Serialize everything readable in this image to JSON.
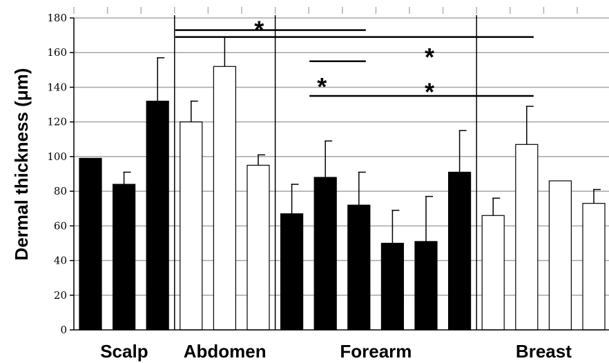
{
  "chart_data": {
    "type": "bar",
    "title": "",
    "ylabel": "Dermal thickness (μm)",
    "ylim": [
      0,
      180
    ],
    "yticks": [
      0,
      20,
      40,
      60,
      80,
      100,
      120,
      140,
      160,
      180
    ],
    "grid": true,
    "groups": [
      {
        "label": "Scalp",
        "bars": [
          {
            "value": 99,
            "error": 0,
            "fill": "black"
          },
          {
            "value": 84,
            "error": 7,
            "fill": "black"
          },
          {
            "value": 132,
            "error": 25,
            "fill": "black"
          }
        ]
      },
      {
        "label": "Abdomen",
        "bars": [
          {
            "value": 120,
            "error": 12,
            "fill": "white"
          },
          {
            "value": 152,
            "error": 17,
            "fill": "white"
          },
          {
            "value": 95,
            "error": 6,
            "fill": "white"
          }
        ]
      },
      {
        "label": "Forearm",
        "bars": [
          {
            "value": 67,
            "error": 17,
            "fill": "black"
          },
          {
            "value": 88,
            "error": 21,
            "fill": "black"
          },
          {
            "value": 72,
            "error": 19,
            "fill": "black"
          },
          {
            "value": 50,
            "error": 19,
            "fill": "black"
          },
          {
            "value": 51,
            "error": 26,
            "fill": "black"
          },
          {
            "value": 91,
            "error": 24,
            "fill": "black"
          }
        ]
      },
      {
        "label": "Breast",
        "bars": [
          {
            "value": 66,
            "error": 10,
            "fill": "white"
          },
          {
            "value": 107,
            "error": 22,
            "fill": "white"
          },
          {
            "value": 86,
            "error": 0,
            "fill": "white"
          },
          {
            "value": 73,
            "error": 8,
            "fill": "white"
          }
        ]
      }
    ],
    "significance": [
      {
        "from_bar": 3,
        "to_bar": 8,
        "y": 173,
        "label": "*"
      },
      {
        "from_bar": 3,
        "to_bar": 13,
        "y": 169,
        "label": "*"
      },
      {
        "from_bar": 7,
        "to_bar": 8,
        "y": 155,
        "label": "*"
      },
      {
        "from_bar": 7,
        "to_bar": 13,
        "y": 135,
        "label": "*"
      }
    ],
    "colors": {
      "black": "#000000",
      "white": "#ffffff",
      "grid": "#a6a6a6"
    }
  }
}
